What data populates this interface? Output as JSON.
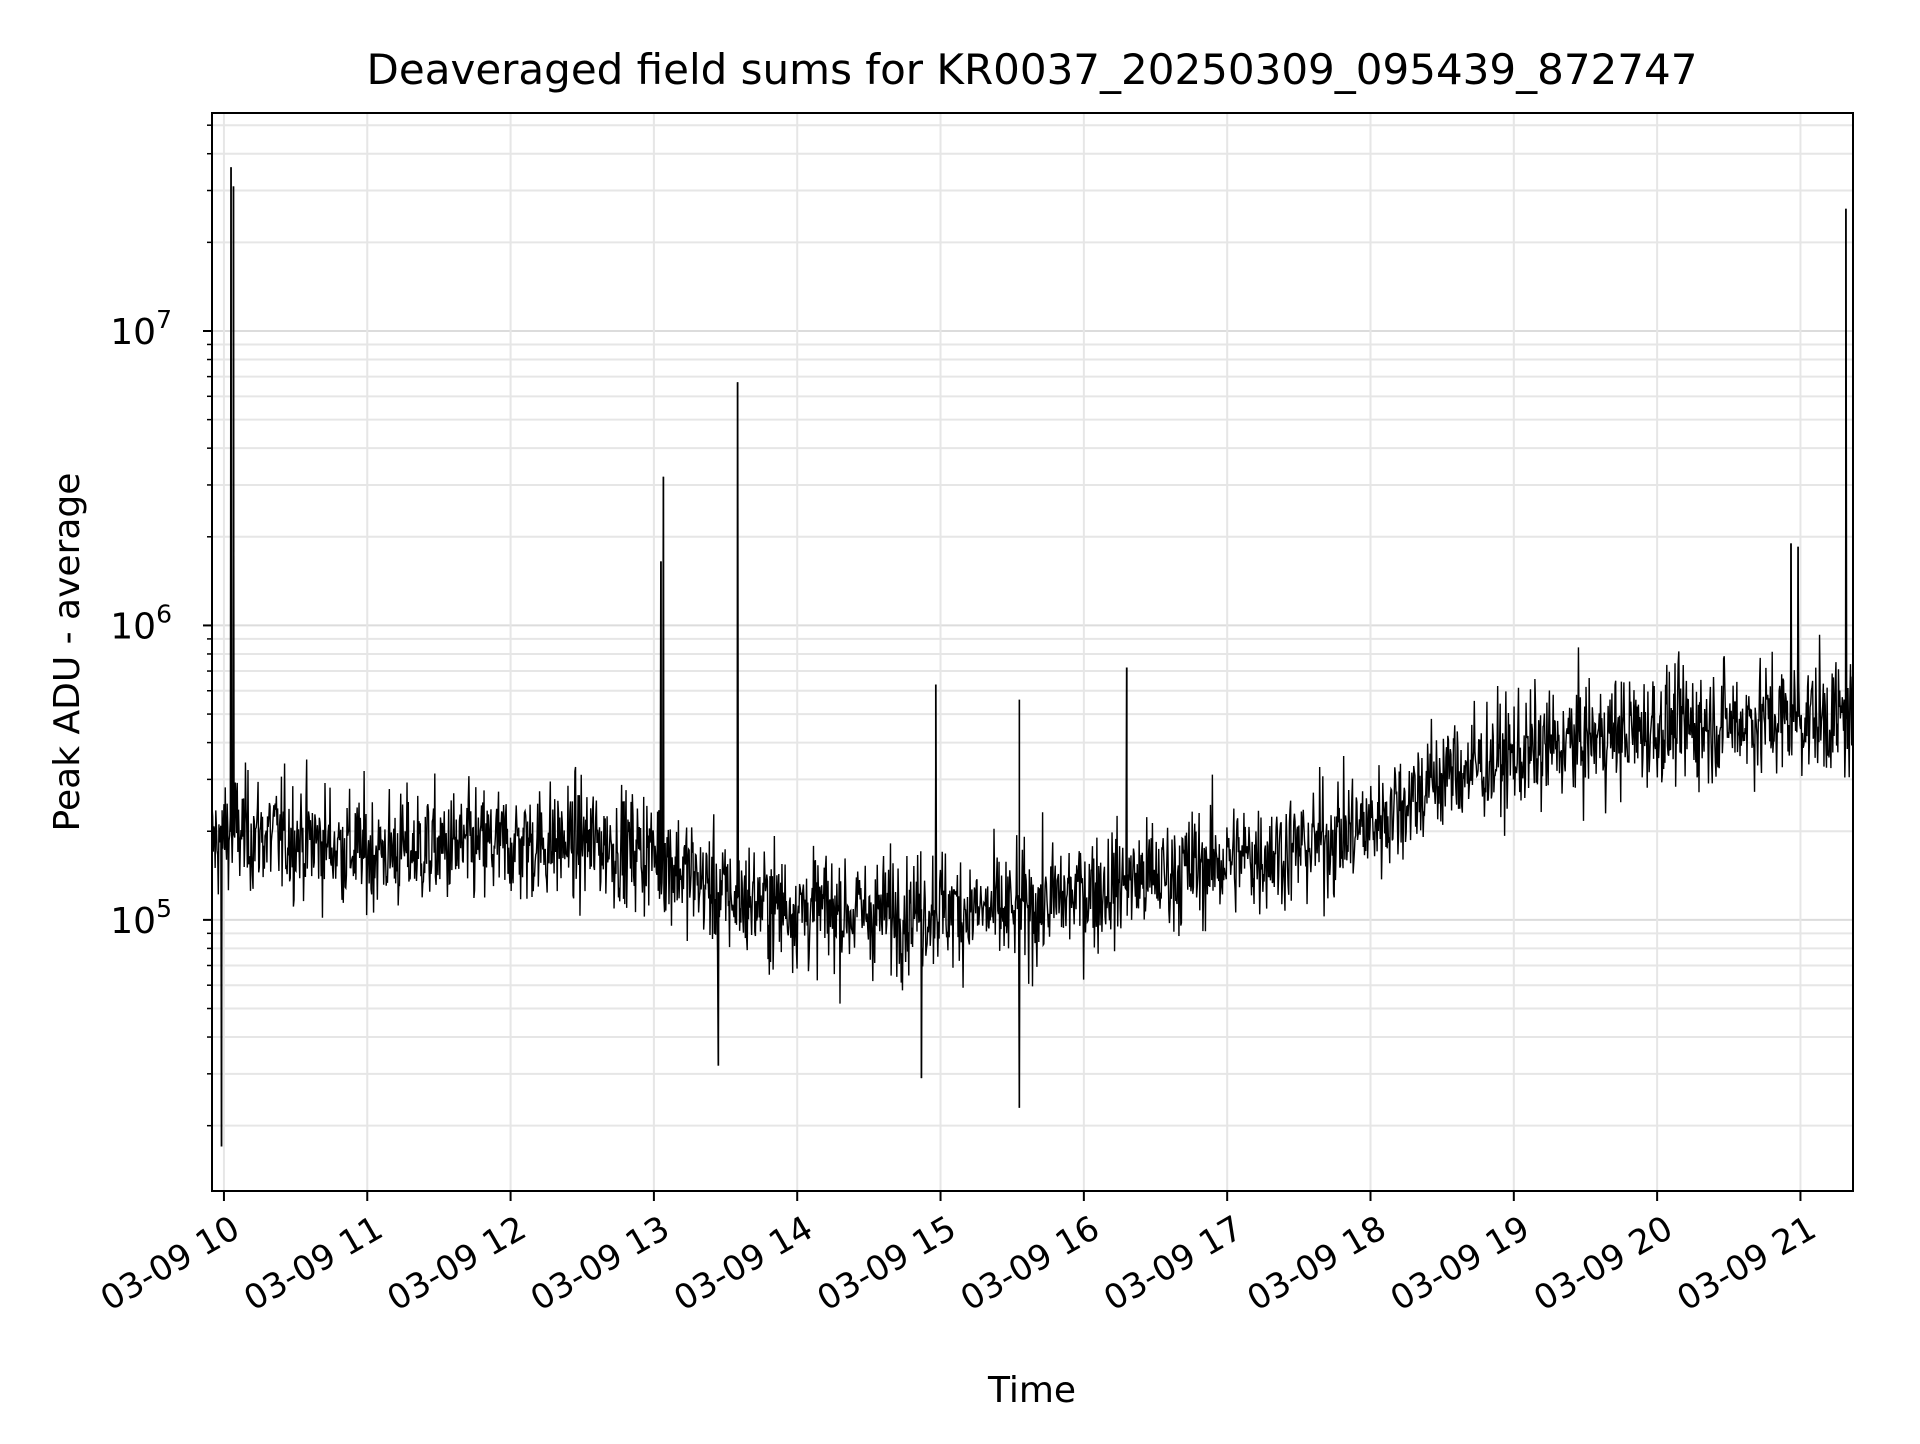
{
  "chart_data": {
    "type": "line",
    "title": "Deaveraged field sums for KR0037_20250309_095439_872747",
    "xlabel": "Time",
    "ylabel": "Peak ADU - average",
    "yscale": "log",
    "ylim": [
      12000,
      55000000
    ],
    "xlim": [
      "2025-03-09 09:55",
      "2025-03-09 21:22"
    ],
    "x_tick_labels": [
      "03-09 10",
      "03-09 11",
      "03-09 12",
      "03-09 13",
      "03-09 14",
      "03-09 15",
      "03-09 16",
      "03-09 17",
      "03-09 18",
      "03-09 19",
      "03-09 20",
      "03-09 21"
    ],
    "y_tick_labels": [
      {
        "base": "10",
        "exp": "5",
        "value": 100000
      },
      {
        "base": "10",
        "exp": "6",
        "value": 1000000
      },
      {
        "base": "10",
        "exp": "7",
        "value": 10000000
      }
    ],
    "grid": true,
    "line_color": "#000000",
    "series": [
      {
        "x": [
          "2025-03-09 09:55",
          "2025-03-09 10:00",
          "2025-03-09 10:30",
          "2025-03-09 11:00",
          "2025-03-09 11:30",
          "2025-03-09 12:00",
          "2025-03-09 12:30",
          "2025-03-09 13:00",
          "2025-03-09 13:30",
          "2025-03-09 14:00",
          "2025-03-09 14:30",
          "2025-03-09 15:00",
          "2025-03-09 15:30",
          "2025-03-09 16:00",
          "2025-03-09 16:30",
          "2025-03-09 17:00",
          "2025-03-09 17:30",
          "2025-03-09 18:00",
          "2025-03-09 18:30",
          "2025-03-09 19:00",
          "2025-03-09 19:30",
          "2025-03-09 20:00",
          "2025-03-09 20:30",
          "2025-03-09 21:00",
          "2025-03-09 21:22"
        ],
        "values": [
          180000,
          200000,
          190000,
          170000,
          175000,
          180000,
          185000,
          170000,
          120000,
          110000,
          105000,
          110000,
          105000,
          125000,
          140000,
          160000,
          175000,
          210000,
          310000,
          360000,
          410000,
          450000,
          470000,
          490000,
          480000
        ]
      }
    ],
    "spikes": [
      {
        "x": "2025-03-09 10:03",
        "value": 36000000
      },
      {
        "x": "2025-03-09 10:04",
        "value": 31000000
      },
      {
        "x": "2025-03-09 13:04",
        "value": 3200000
      },
      {
        "x": "2025-03-09 13:03",
        "value": 1650000
      },
      {
        "x": "2025-03-09 13:35",
        "value": 6700000
      },
      {
        "x": "2025-03-09 14:58",
        "value": 630000
      },
      {
        "x": "2025-03-09 15:33",
        "value": 560000
      },
      {
        "x": "2025-03-09 16:18",
        "value": 720000
      },
      {
        "x": "2025-03-09 20:56",
        "value": 1900000
      },
      {
        "x": "2025-03-09 20:59",
        "value": 1850000
      },
      {
        "x": "2025-03-09 21:19",
        "value": 26000000
      }
    ],
    "dips": [
      {
        "x": "2025-03-09 09:59",
        "value": 17000
      },
      {
        "x": "2025-03-09 15:33",
        "value": 23000
      },
      {
        "x": "2025-03-09 14:52",
        "value": 29000
      },
      {
        "x": "2025-03-09 13:27",
        "value": 32000
      }
    ]
  }
}
